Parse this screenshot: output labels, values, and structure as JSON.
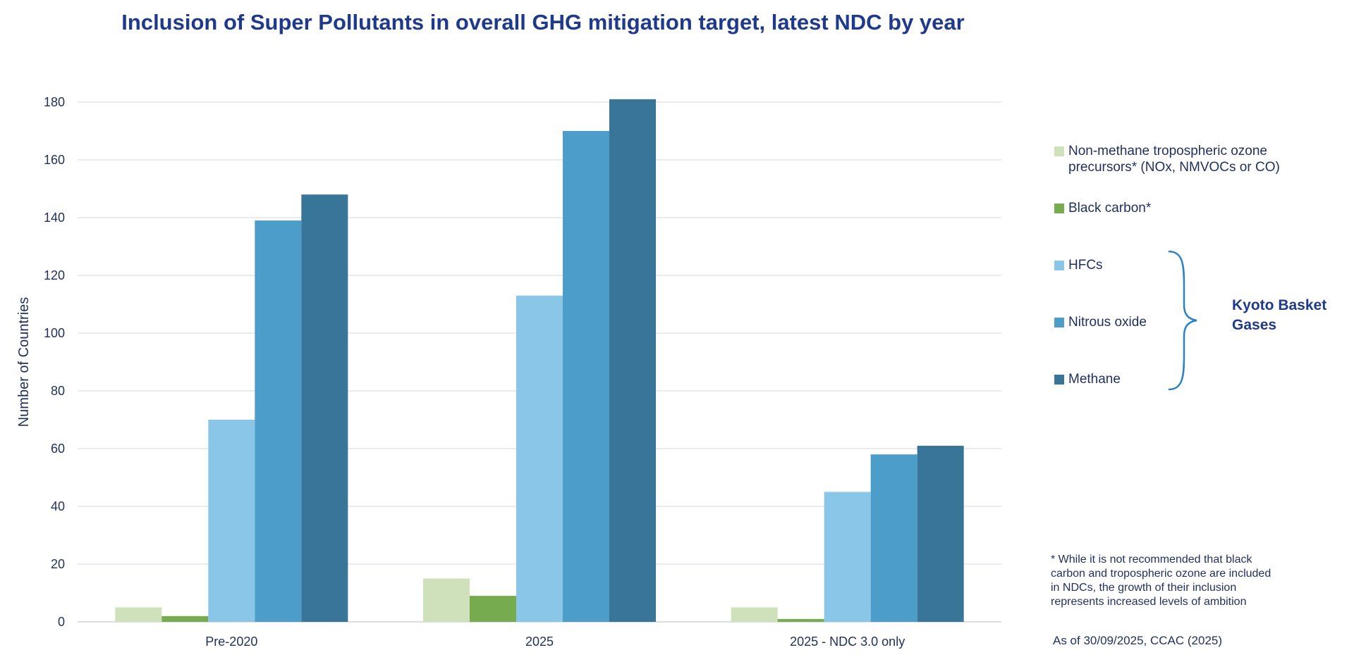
{
  "chart_data": {
    "type": "bar",
    "title": "Inclusion of Super Pollutants in overall GHG mitigation target, latest NDC by year",
    "xlabel": "",
    "ylabel": "Number of Countries",
    "ylim": [
      0,
      180
    ],
    "yticks": [
      0,
      20,
      40,
      60,
      80,
      100,
      120,
      140,
      160,
      180
    ],
    "categories": [
      "Pre-2020",
      "2025",
      "2025 - NDC 3.0 only"
    ],
    "series": [
      {
        "name": "Non-methane tropospheric ozone precursors* (NOx, NMVOCs or CO)",
        "color": "#cfe1ba",
        "values": [
          5,
          15,
          5
        ]
      },
      {
        "name": "Black carbon*",
        "color": "#76ab4f",
        "values": [
          2,
          9,
          1
        ]
      },
      {
        "name": "HFCs",
        "color": "#8ac6e7",
        "values": [
          70,
          113,
          45
        ]
      },
      {
        "name": "Nitrous oxide",
        "color": "#4d9dcb",
        "values": [
          139,
          170,
          58
        ]
      },
      {
        "name": "Methane",
        "color": "#387599",
        "values": [
          148,
          181,
          61
        ]
      }
    ],
    "grid": true,
    "legend_position": "right"
  },
  "legend": {
    "items": [
      {
        "line1": "Non-methane tropospheric ozone",
        "line2": "precursors* (NOx, NMVOCs or CO)",
        "color": "#cfe1ba"
      },
      {
        "line1": "Black carbon*",
        "line2": "",
        "color": "#76ab4f"
      },
      {
        "line1": "HFCs",
        "line2": "",
        "color": "#8ac6e7"
      },
      {
        "line1": "Nitrous oxide",
        "line2": "",
        "color": "#4d9dcb"
      },
      {
        "line1": "Methane",
        "line2": "",
        "color": "#387599"
      }
    ],
    "group_label_line1": "Kyoto Basket",
    "group_label_line2": "Gases",
    "brace_color": "#2a82c4"
  },
  "footnote": {
    "line1": "* While it is not recommended that black",
    "line2": "carbon and tropospheric ozone are included",
    "line3": "in NDCs, the growth of their inclusion",
    "line4": "represents increased levels of ambition"
  },
  "source": "As of 30/09/2025, CCAC (2025)",
  "colors": {
    "title": "#1f3a8a",
    "text": "#1f2f5e",
    "grid": "#d4d7dd"
  }
}
